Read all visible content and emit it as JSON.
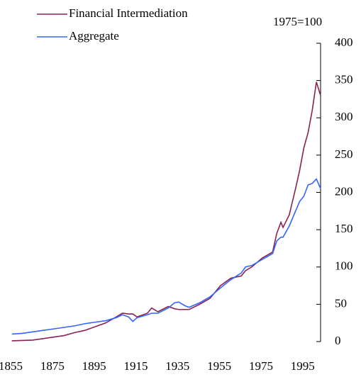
{
  "chart_data": {
    "type": "line",
    "annotation": "1975=100",
    "x": [
      1860,
      1865,
      1870,
      1875,
      1880,
      1885,
      1890,
      1895,
      1900,
      1905,
      1910,
      1913,
      1916,
      1918,
      1920,
      1925,
      1927,
      1930,
      1935,
      1938,
      1940,
      1943,
      1945,
      1950,
      1955,
      1960,
      1965,
      1970,
      1972,
      1975,
      1980,
      1985,
      1987,
      1989,
      1990,
      1993,
      1996,
      1998,
      2000,
      2002,
      2004,
      2006,
      2008
    ],
    "series": [
      {
        "name": "Financial Intermediation",
        "color": "#8b2252",
        "values": [
          1,
          1.5,
          2,
          4,
          6,
          8,
          12,
          15,
          20,
          25,
          33,
          38,
          37,
          37,
          33,
          38,
          45,
          40,
          47,
          44,
          43,
          43,
          43,
          50,
          58,
          75,
          85,
          88,
          95,
          100,
          112,
          120,
          145,
          160,
          153,
          170,
          205,
          230,
          260,
          280,
          310,
          348,
          330
        ]
      },
      {
        "name": "Aggregate",
        "color": "#3366ff",
        "values": [
          10,
          11,
          13,
          15,
          17,
          19,
          21,
          24,
          26,
          28,
          32,
          36,
          33,
          27,
          32,
          36,
          38,
          38,
          45,
          52,
          53,
          48,
          46,
          52,
          60,
          72,
          83,
          92,
          100,
          102,
          110,
          118,
          135,
          140,
          140,
          155,
          175,
          188,
          195,
          210,
          212,
          218,
          205
        ]
      }
    ],
    "xlim": [
      1855,
      2008
    ],
    "xticks": [
      1855,
      1875,
      1895,
      1915,
      1935,
      1955,
      1975,
      1995
    ],
    "ylim": [
      0,
      400
    ],
    "yticks": [
      0,
      50,
      100,
      150,
      200,
      250,
      300,
      350,
      400
    ],
    "legend": "upper-left"
  }
}
